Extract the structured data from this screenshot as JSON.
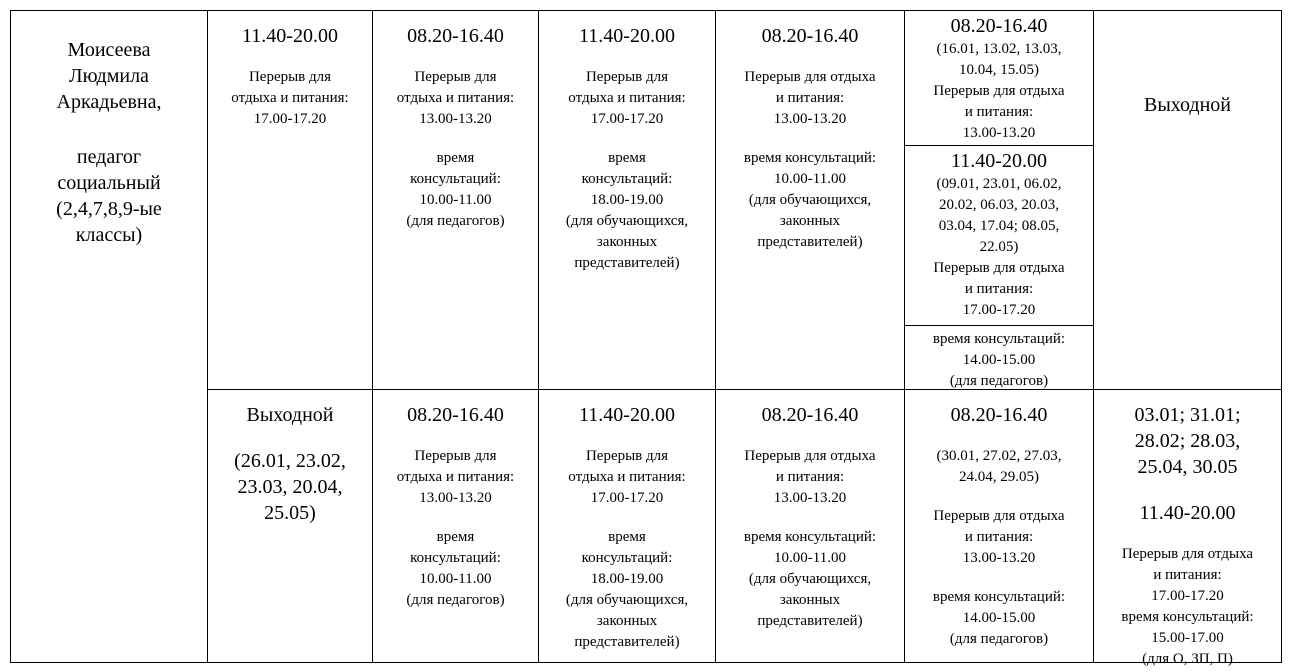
{
  "person": {
    "name": [
      "Моисеева",
      "Людмила",
      "Аркадьевна,"
    ],
    "role": [
      "педагог",
      "социальный",
      "(2,4,7,8,9-ые",
      "классы)"
    ]
  },
  "rows": [
    {
      "schedule": [
        [
          {
            "heading": [
              "11.40-20.00"
            ]
          },
          {
            "text": [
              "Перерыв для",
              "отдыха и питания:",
              "17.00-17.20"
            ]
          }
        ],
        [
          {
            "heading": [
              "08.20-16.40"
            ]
          },
          {
            "text": [
              "Перерыв для",
              "отдыха и питания:",
              "13.00-13.20"
            ]
          },
          {
            "text": [
              "время",
              "консультаций:",
              "10.00-11.00",
              "(для педагогов)"
            ]
          }
        ],
        [
          {
            "heading": [
              "11.40-20.00"
            ]
          },
          {
            "text": [
              "Перерыв для",
              "отдыха и питания:",
              "17.00-17.20"
            ]
          },
          {
            "text": [
              "время",
              "консультаций:",
              "18.00-19.00",
              "(для обучающихся,",
              "законных",
              "представителей)"
            ]
          }
        ],
        [
          {
            "heading": [
              "08.20-16.40"
            ]
          },
          {
            "text": [
              "Перерыв для отдыха",
              "и питания:",
              "13.00-13.20"
            ]
          },
          {
            "text": [
              "время консультаций:",
              "10.00-11.00",
              "(для обучающихся,",
              "законных",
              "представителей)"
            ]
          }
        ],
        [
          [
            {
              "heading": [
                "08.20-16.40"
              ]
            },
            {
              "text": [
                "(16.01, 13.02, 13.03,",
                "10.04, 15.05)",
                "Перерыв для отдыха",
                "и питания:",
                "13.00-13.20"
              ]
            }
          ],
          [
            {
              "heading": [
                "11.40-20.00"
              ]
            },
            {
              "text": [
                "(09.01, 23.01, 06.02,",
                "20.02, 06.03, 20.03,",
                "03.04, 17.04; 08.05,",
                "22.05)",
                "Перерыв для отдыха",
                "и питания:",
                "17.00-17.20"
              ]
            }
          ],
          [
            {
              "text": [
                "время консультаций:",
                "14.00-15.00",
                "(для педагогов)"
              ]
            }
          ]
        ],
        [
          {
            "heading": [
              "Выходной"
            ]
          }
        ]
      ]
    },
    {
      "schedule": [
        [
          {
            "heading": [
              "Выходной"
            ]
          },
          {
            "heading": [
              "(26.01, 23.02,",
              "23.03, 20.04,",
              "25.05)"
            ]
          }
        ],
        [
          {
            "heading": [
              "08.20-16.40"
            ]
          },
          {
            "text": [
              "Перерыв для",
              "отдыха и питания:",
              "13.00-13.20"
            ]
          },
          {
            "text": [
              "время",
              "консультаций:",
              "10.00-11.00",
              "(для педагогов)"
            ]
          }
        ],
        [
          {
            "heading": [
              "11.40-20.00"
            ]
          },
          {
            "text": [
              "Перерыв для",
              "отдыха и питания:",
              "17.00-17.20"
            ]
          },
          {
            "text": [
              "время",
              "консультаций:",
              "18.00-19.00",
              "(для обучающихся,",
              "законных",
              "представителей)"
            ]
          }
        ],
        [
          {
            "heading": [
              "08.20-16.40"
            ]
          },
          {
            "text": [
              "Перерыв для отдыха",
              "и питания:",
              "13.00-13.20"
            ]
          },
          {
            "text": [
              "время консультаций:",
              "10.00-11.00",
              "(для обучающихся,",
              "законных",
              "представителей)"
            ]
          }
        ],
        [
          {
            "heading": [
              "08.20-16.40"
            ]
          },
          {
            "text": [
              "(30.01, 27.02, 27.03,",
              "24.04, 29.05)"
            ]
          },
          {
            "text": [
              "Перерыв для отдыха",
              "и питания:",
              "13.00-13.20"
            ]
          },
          {
            "text": [
              "время консультаций:",
              "14.00-15.00",
              "(для педагогов)"
            ]
          }
        ],
        [
          {
            "heading": [
              "03.01; 31.01;",
              "28.02; 28.03,",
              "25.04, 30.05"
            ]
          },
          {
            "heading": [
              "11.40-20.00"
            ]
          },
          {
            "text": [
              "Перерыв для отдыха",
              "и питания:",
              "17.00-17.20",
              "время консультаций:",
              "15.00-17.00",
              "(для О, ЗП, П)"
            ]
          }
        ]
      ]
    }
  ]
}
